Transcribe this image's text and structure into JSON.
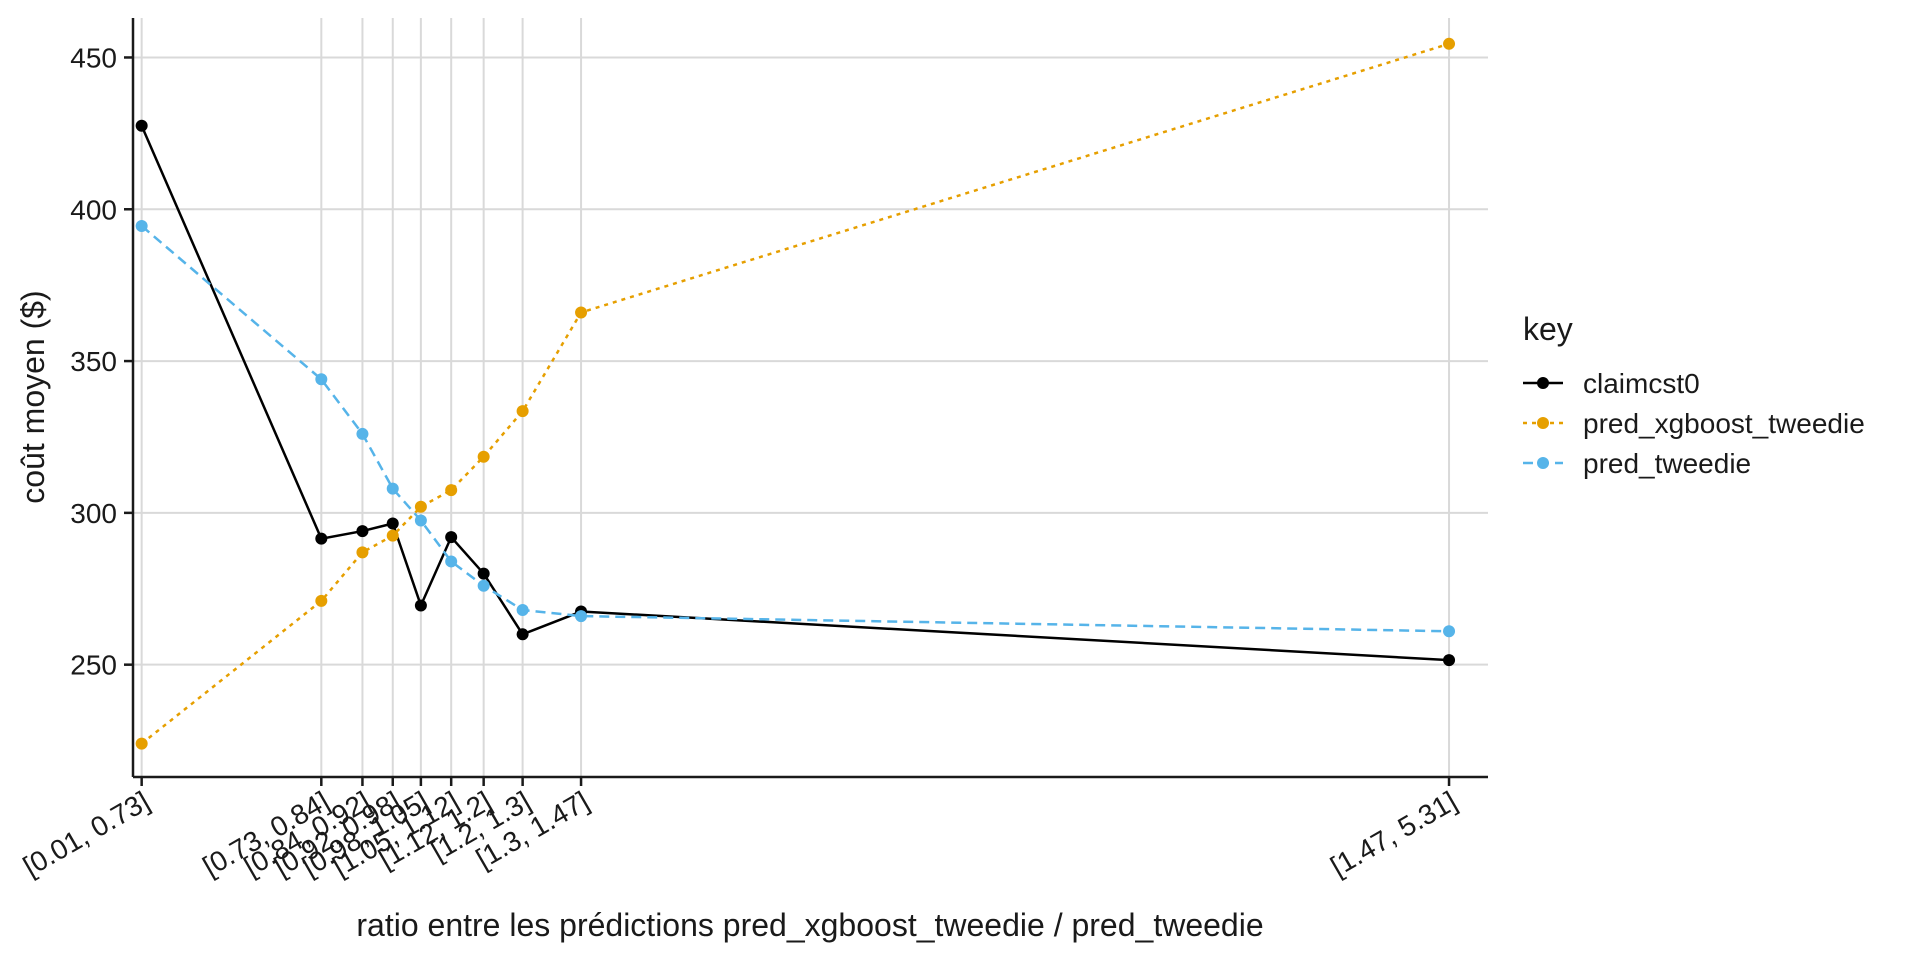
{
  "chart_data": {
    "type": "line",
    "title": "",
    "xlabel": "ratio entre les prédictions pred_xgboost_tweedie / pred_tweedie",
    "ylabel": "coût moyen ($)",
    "x_scale": "ordinal, spaced by bin midpoint",
    "categories": [
      "[0.01, 0.73]",
      "[0.73, 0.84]",
      "[0.84, 0.92]",
      "[0.92, 0.98]",
      "[0.98, 1.05]",
      "[1.05, 1.12]",
      "[1.12, 1.2]",
      "[1.2, 1.3]",
      "[1.3, 1.47]",
      "[1.47, 5.31]"
    ],
    "x_positions": [
      0.37,
      0.785,
      0.88,
      0.95,
      1.015,
      1.085,
      1.16,
      1.25,
      1.385,
      3.39
    ],
    "xlim": [
      0.35,
      3.48
    ],
    "ylim": [
      213,
      463
    ],
    "yticks": [
      250,
      300,
      350,
      400,
      450
    ],
    "grid": true,
    "legend": {
      "title": "key",
      "placement": "right"
    },
    "series": [
      {
        "name": "claimcst0",
        "color": "#000000",
        "dash": "solid",
        "values": [
          427.5,
          291.5,
          294,
          296.5,
          269.5,
          292,
          280,
          260,
          267.5,
          251.5
        ]
      },
      {
        "name": "pred_xgboost_tweedie",
        "color": "#E69F00",
        "dash": "dotted",
        "values": [
          224,
          271,
          287,
          292.5,
          302,
          307.5,
          318.5,
          333.5,
          366,
          454.5
        ]
      },
      {
        "name": "pred_tweedie",
        "color": "#56B4E9",
        "dash": "dashed",
        "values": [
          394.5,
          344,
          326,
          308,
          297.5,
          284,
          276,
          268,
          266,
          261
        ]
      }
    ]
  }
}
